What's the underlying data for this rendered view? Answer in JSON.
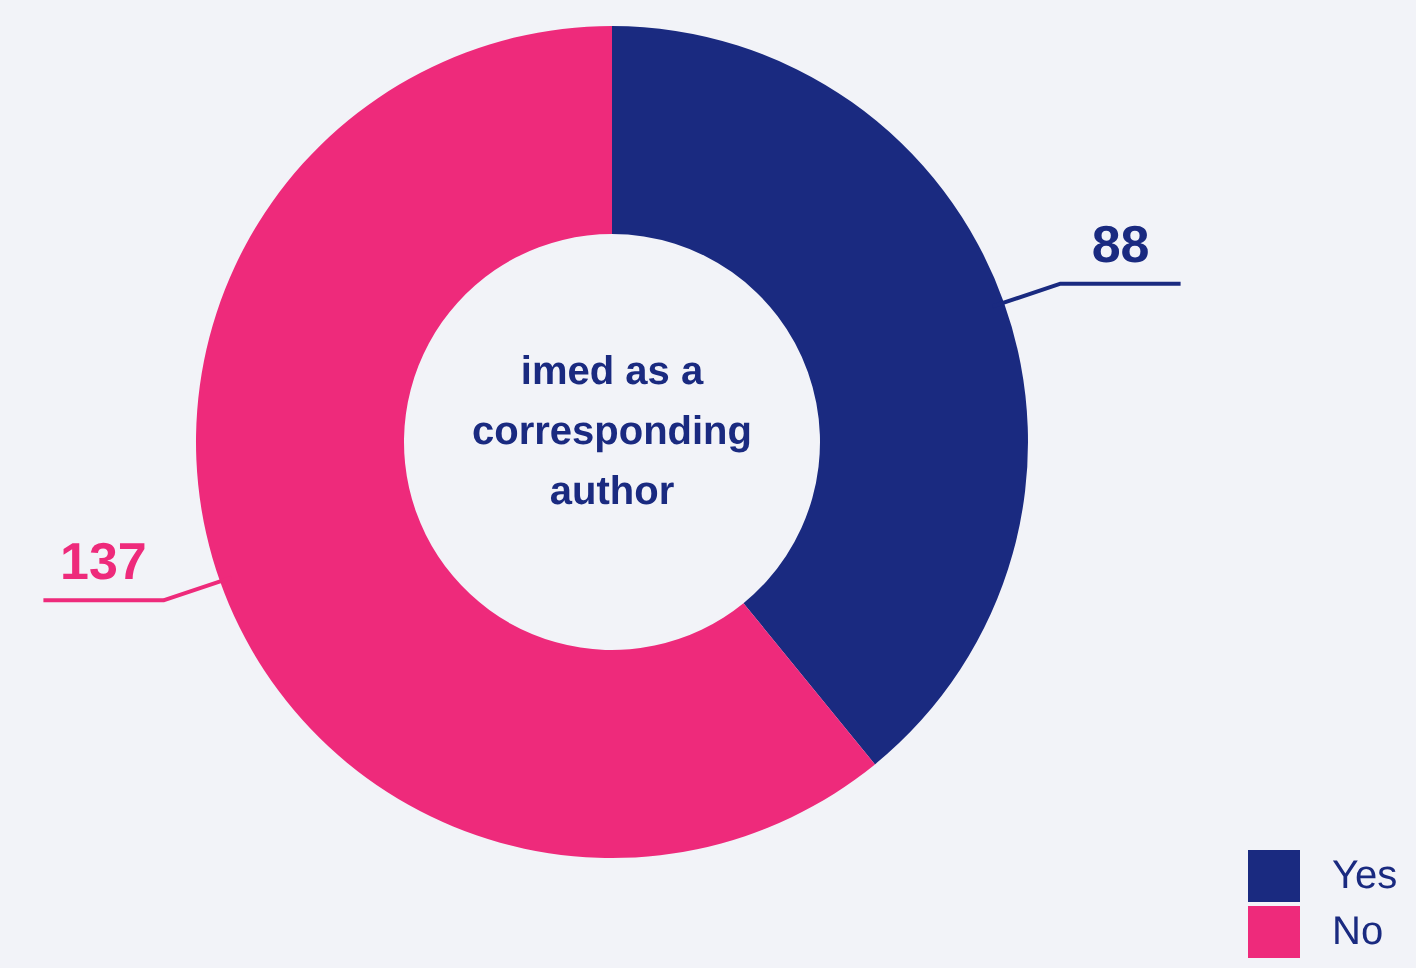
{
  "chart_data": {
    "type": "donut",
    "title": "imed as a corresponding author",
    "categories": [
      "Yes",
      "No"
    ],
    "values": [
      88,
      137
    ],
    "colors": [
      "#1a2a80",
      "#ee2a7b"
    ],
    "data_labels": true,
    "legend": "bottom right"
  }
}
